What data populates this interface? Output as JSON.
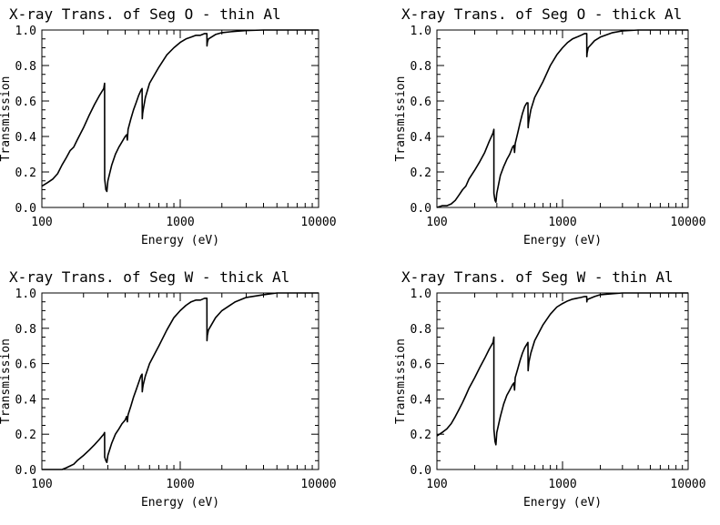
{
  "chart_data": [
    {
      "type": "line",
      "title": "X-ray Trans. of Seg O - thin Al",
      "xlabel": "Energy (eV)",
      "ylabel": "Transmission",
      "xscale": "log",
      "xlim": [
        100,
        10000
      ],
      "ylim": [
        0.0,
        1.0
      ],
      "xticks": [
        "100",
        "1000",
        "10000"
      ],
      "yticks": [
        "0.0",
        "0.2",
        "0.4",
        "0.6",
        "0.8",
        "1.0"
      ],
      "grid": false,
      "series": [
        {
          "x": [
            100,
            110,
            120,
            130,
            140,
            150,
            160,
            170,
            180,
            200,
            220,
            240,
            260,
            280,
            284,
            284.2,
            290,
            295,
            300,
            320,
            340,
            360,
            380,
            400,
            410,
            415,
            420,
            440,
            460,
            480,
            500,
            520,
            530,
            532,
            535,
            540,
            560,
            600,
            700,
            800,
            900,
            1000,
            1100,
            1200,
            1300,
            1400,
            1500,
            1559,
            1560,
            1570,
            1600,
            1800,
            2000,
            2500,
            3000,
            4000,
            5000,
            7000,
            10000
          ],
          "y": [
            0.12,
            0.14,
            0.16,
            0.19,
            0.24,
            0.28,
            0.32,
            0.34,
            0.38,
            0.45,
            0.52,
            0.58,
            0.63,
            0.67,
            0.7,
            0.16,
            0.1,
            0.09,
            0.15,
            0.24,
            0.3,
            0.34,
            0.37,
            0.4,
            0.41,
            0.38,
            0.44,
            0.5,
            0.55,
            0.59,
            0.63,
            0.66,
            0.67,
            0.5,
            0.53,
            0.55,
            0.62,
            0.7,
            0.79,
            0.86,
            0.9,
            0.93,
            0.95,
            0.96,
            0.97,
            0.97,
            0.98,
            0.98,
            0.91,
            0.93,
            0.95,
            0.975,
            0.985,
            0.993,
            0.997,
            1.0,
            1.0,
            1.0,
            1.0
          ]
        }
      ]
    },
    {
      "type": "line",
      "title": "X-ray Trans. of Seg O - thick Al",
      "xlabel": "Energy (eV)",
      "ylabel": "Transmission",
      "xscale": "log",
      "xlim": [
        100,
        10000
      ],
      "ylim": [
        0.0,
        1.0
      ],
      "xticks": [
        "100",
        "1000",
        "10000"
      ],
      "yticks": [
        "0.0",
        "0.2",
        "0.4",
        "0.6",
        "0.8",
        "1.0"
      ],
      "grid": false,
      "series": [
        {
          "x": [
            100,
            110,
            120,
            130,
            140,
            150,
            160,
            170,
            180,
            200,
            220,
            240,
            260,
            280,
            284,
            284.2,
            290,
            295,
            300,
            320,
            340,
            360,
            380,
            400,
            410,
            415,
            420,
            440,
            460,
            480,
            500,
            520,
            530,
            532,
            535,
            540,
            560,
            600,
            700,
            800,
            900,
            1000,
            1100,
            1200,
            1300,
            1400,
            1500,
            1559,
            1560,
            1570,
            1600,
            1800,
            2000,
            2500,
            3000,
            4000,
            5000,
            7000,
            10000
          ],
          "y": [
            0.0,
            0.01,
            0.01,
            0.02,
            0.04,
            0.07,
            0.1,
            0.12,
            0.16,
            0.21,
            0.26,
            0.31,
            0.37,
            0.42,
            0.44,
            0.08,
            0.04,
            0.03,
            0.08,
            0.18,
            0.23,
            0.27,
            0.3,
            0.34,
            0.35,
            0.31,
            0.36,
            0.42,
            0.48,
            0.53,
            0.57,
            0.59,
            0.59,
            0.45,
            0.47,
            0.49,
            0.55,
            0.62,
            0.71,
            0.8,
            0.86,
            0.9,
            0.93,
            0.95,
            0.96,
            0.97,
            0.98,
            0.98,
            0.85,
            0.87,
            0.9,
            0.94,
            0.96,
            0.985,
            0.995,
            1.0,
            1.0,
            1.0,
            1.0
          ]
        }
      ]
    },
    {
      "type": "line",
      "title": "X-ray Trans. of Seg W - thick Al",
      "xlabel": "Energy (eV)",
      "ylabel": "Transmission",
      "xscale": "log",
      "xlim": [
        100,
        10000
      ],
      "ylim": [
        0.0,
        1.0
      ],
      "xticks": [
        "100",
        "1000",
        "10000"
      ],
      "yticks": [
        "0.0",
        "0.2",
        "0.4",
        "0.6",
        "0.8",
        "1.0"
      ],
      "grid": false,
      "series": [
        {
          "x": [
            100,
            120,
            140,
            150,
            160,
            170,
            180,
            200,
            220,
            240,
            260,
            280,
            284,
            284.2,
            290,
            295,
            300,
            320,
            340,
            360,
            380,
            400,
            410,
            415,
            420,
            440,
            460,
            480,
            500,
            520,
            530,
            532,
            535,
            540,
            560,
            600,
            700,
            800,
            900,
            1000,
            1100,
            1200,
            1300,
            1400,
            1500,
            1559,
            1560,
            1570,
            1600,
            1800,
            2000,
            2500,
            3000,
            4000,
            5000,
            7000,
            10000
          ],
          "y": [
            0.0,
            0.0,
            0.0,
            0.01,
            0.02,
            0.03,
            0.05,
            0.08,
            0.11,
            0.14,
            0.17,
            0.2,
            0.21,
            0.07,
            0.05,
            0.04,
            0.08,
            0.15,
            0.2,
            0.23,
            0.26,
            0.28,
            0.3,
            0.27,
            0.31,
            0.36,
            0.41,
            0.45,
            0.49,
            0.53,
            0.54,
            0.44,
            0.46,
            0.48,
            0.53,
            0.6,
            0.7,
            0.79,
            0.86,
            0.9,
            0.93,
            0.95,
            0.96,
            0.96,
            0.97,
            0.97,
            0.73,
            0.76,
            0.79,
            0.86,
            0.9,
            0.95,
            0.975,
            0.99,
            1.0,
            1.0,
            1.0
          ]
        }
      ]
    },
    {
      "type": "line",
      "title": "X-ray Trans. of Seg W - thin Al",
      "xlabel": "Energy (eV)",
      "ylabel": "Transmission",
      "xscale": "log",
      "xlim": [
        100,
        10000
      ],
      "ylim": [
        0.0,
        1.0
      ],
      "xticks": [
        "100",
        "1000",
        "10000"
      ],
      "yticks": [
        "0.0",
        "0.2",
        "0.4",
        "0.6",
        "0.8",
        "1.0"
      ],
      "grid": false,
      "series": [
        {
          "x": [
            100,
            110,
            120,
            130,
            140,
            150,
            160,
            170,
            180,
            200,
            220,
            240,
            260,
            280,
            284,
            284.2,
            290,
            295,
            300,
            320,
            340,
            360,
            380,
            400,
            410,
            415,
            420,
            440,
            460,
            480,
            500,
            520,
            530,
            532,
            535,
            540,
            560,
            600,
            700,
            800,
            900,
            1000,
            1100,
            1200,
            1300,
            1400,
            1500,
            1559,
            1560,
            1570,
            1600,
            1800,
            2000,
            2500,
            3000,
            4000,
            5000,
            7000,
            10000
          ],
          "y": [
            0.19,
            0.21,
            0.23,
            0.26,
            0.3,
            0.34,
            0.38,
            0.42,
            0.46,
            0.52,
            0.58,
            0.63,
            0.68,
            0.72,
            0.75,
            0.23,
            0.16,
            0.14,
            0.21,
            0.3,
            0.37,
            0.42,
            0.45,
            0.48,
            0.49,
            0.45,
            0.52,
            0.57,
            0.62,
            0.66,
            0.69,
            0.71,
            0.72,
            0.56,
            0.58,
            0.61,
            0.66,
            0.73,
            0.82,
            0.88,
            0.92,
            0.94,
            0.955,
            0.965,
            0.97,
            0.975,
            0.98,
            0.98,
            0.95,
            0.96,
            0.965,
            0.98,
            0.99,
            0.996,
            1.0,
            1.0,
            1.0,
            1.0,
            1.0
          ]
        }
      ]
    }
  ]
}
